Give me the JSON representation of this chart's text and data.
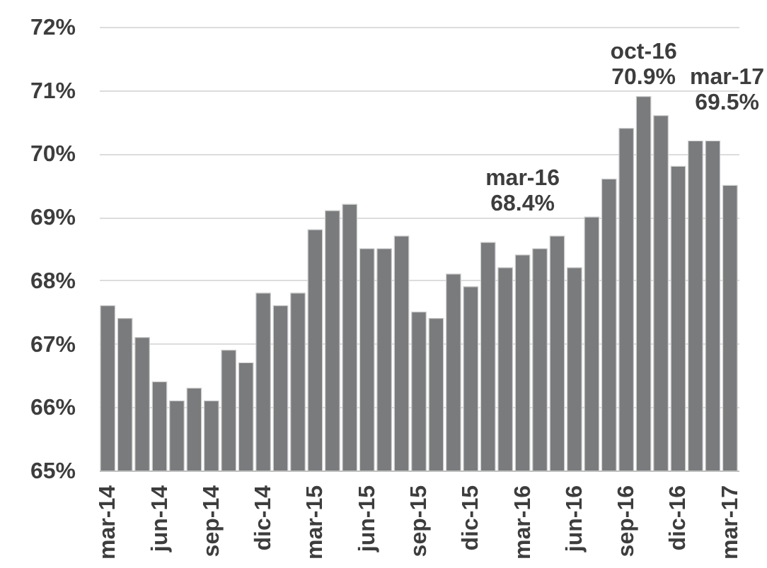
{
  "chart_data": {
    "type": "bar",
    "categories": [
      "mar-14",
      null,
      null,
      "jun-14",
      null,
      null,
      "sep-14",
      null,
      null,
      "dic-14",
      null,
      null,
      "mar-15",
      null,
      null,
      "jun-15",
      null,
      null,
      "sep-15",
      null,
      null,
      "dic-15",
      null,
      null,
      "mar-16",
      null,
      null,
      "jun-16",
      null,
      null,
      "sep-16",
      null,
      null,
      "dic-16",
      null,
      null,
      "mar-17"
    ],
    "values": [
      67.6,
      67.4,
      67.1,
      66.4,
      66.1,
      66.3,
      66.1,
      66.9,
      66.7,
      67.8,
      67.6,
      67.8,
      68.8,
      69.1,
      69.2,
      68.5,
      68.5,
      68.7,
      67.5,
      67.4,
      68.1,
      67.9,
      68.6,
      68.2,
      68.4,
      68.5,
      68.7,
      68.2,
      69.0,
      69.6,
      70.4,
      70.9,
      70.6,
      69.8,
      70.2,
      70.2,
      69.5
    ],
    "value_labels": [
      null,
      null,
      null,
      null,
      null,
      null,
      null,
      null,
      null,
      null,
      null,
      null,
      null,
      null,
      null,
      null,
      null,
      null,
      null,
      null,
      null,
      null,
      null,
      null,
      "mar-16\n68.4%",
      null,
      null,
      null,
      null,
      null,
      null,
      "oct-16\n70.9%",
      null,
      null,
      null,
      null,
      "mar-17\n69.5%"
    ],
    "color": "#7a7b7d",
    "ylim": [
      65,
      72
    ],
    "yticks": [
      {
        "value": 65,
        "label": "65%"
      },
      {
        "value": 66,
        "label": "66%"
      },
      {
        "value": 67,
        "label": "67%"
      },
      {
        "value": 68,
        "label": "68%"
      },
      {
        "value": 69,
        "label": "69%"
      },
      {
        "value": 70,
        "label": "70%"
      },
      {
        "value": 71,
        "label": "71%"
      },
      {
        "value": 72,
        "label": "72%"
      }
    ],
    "grid": "y"
  }
}
